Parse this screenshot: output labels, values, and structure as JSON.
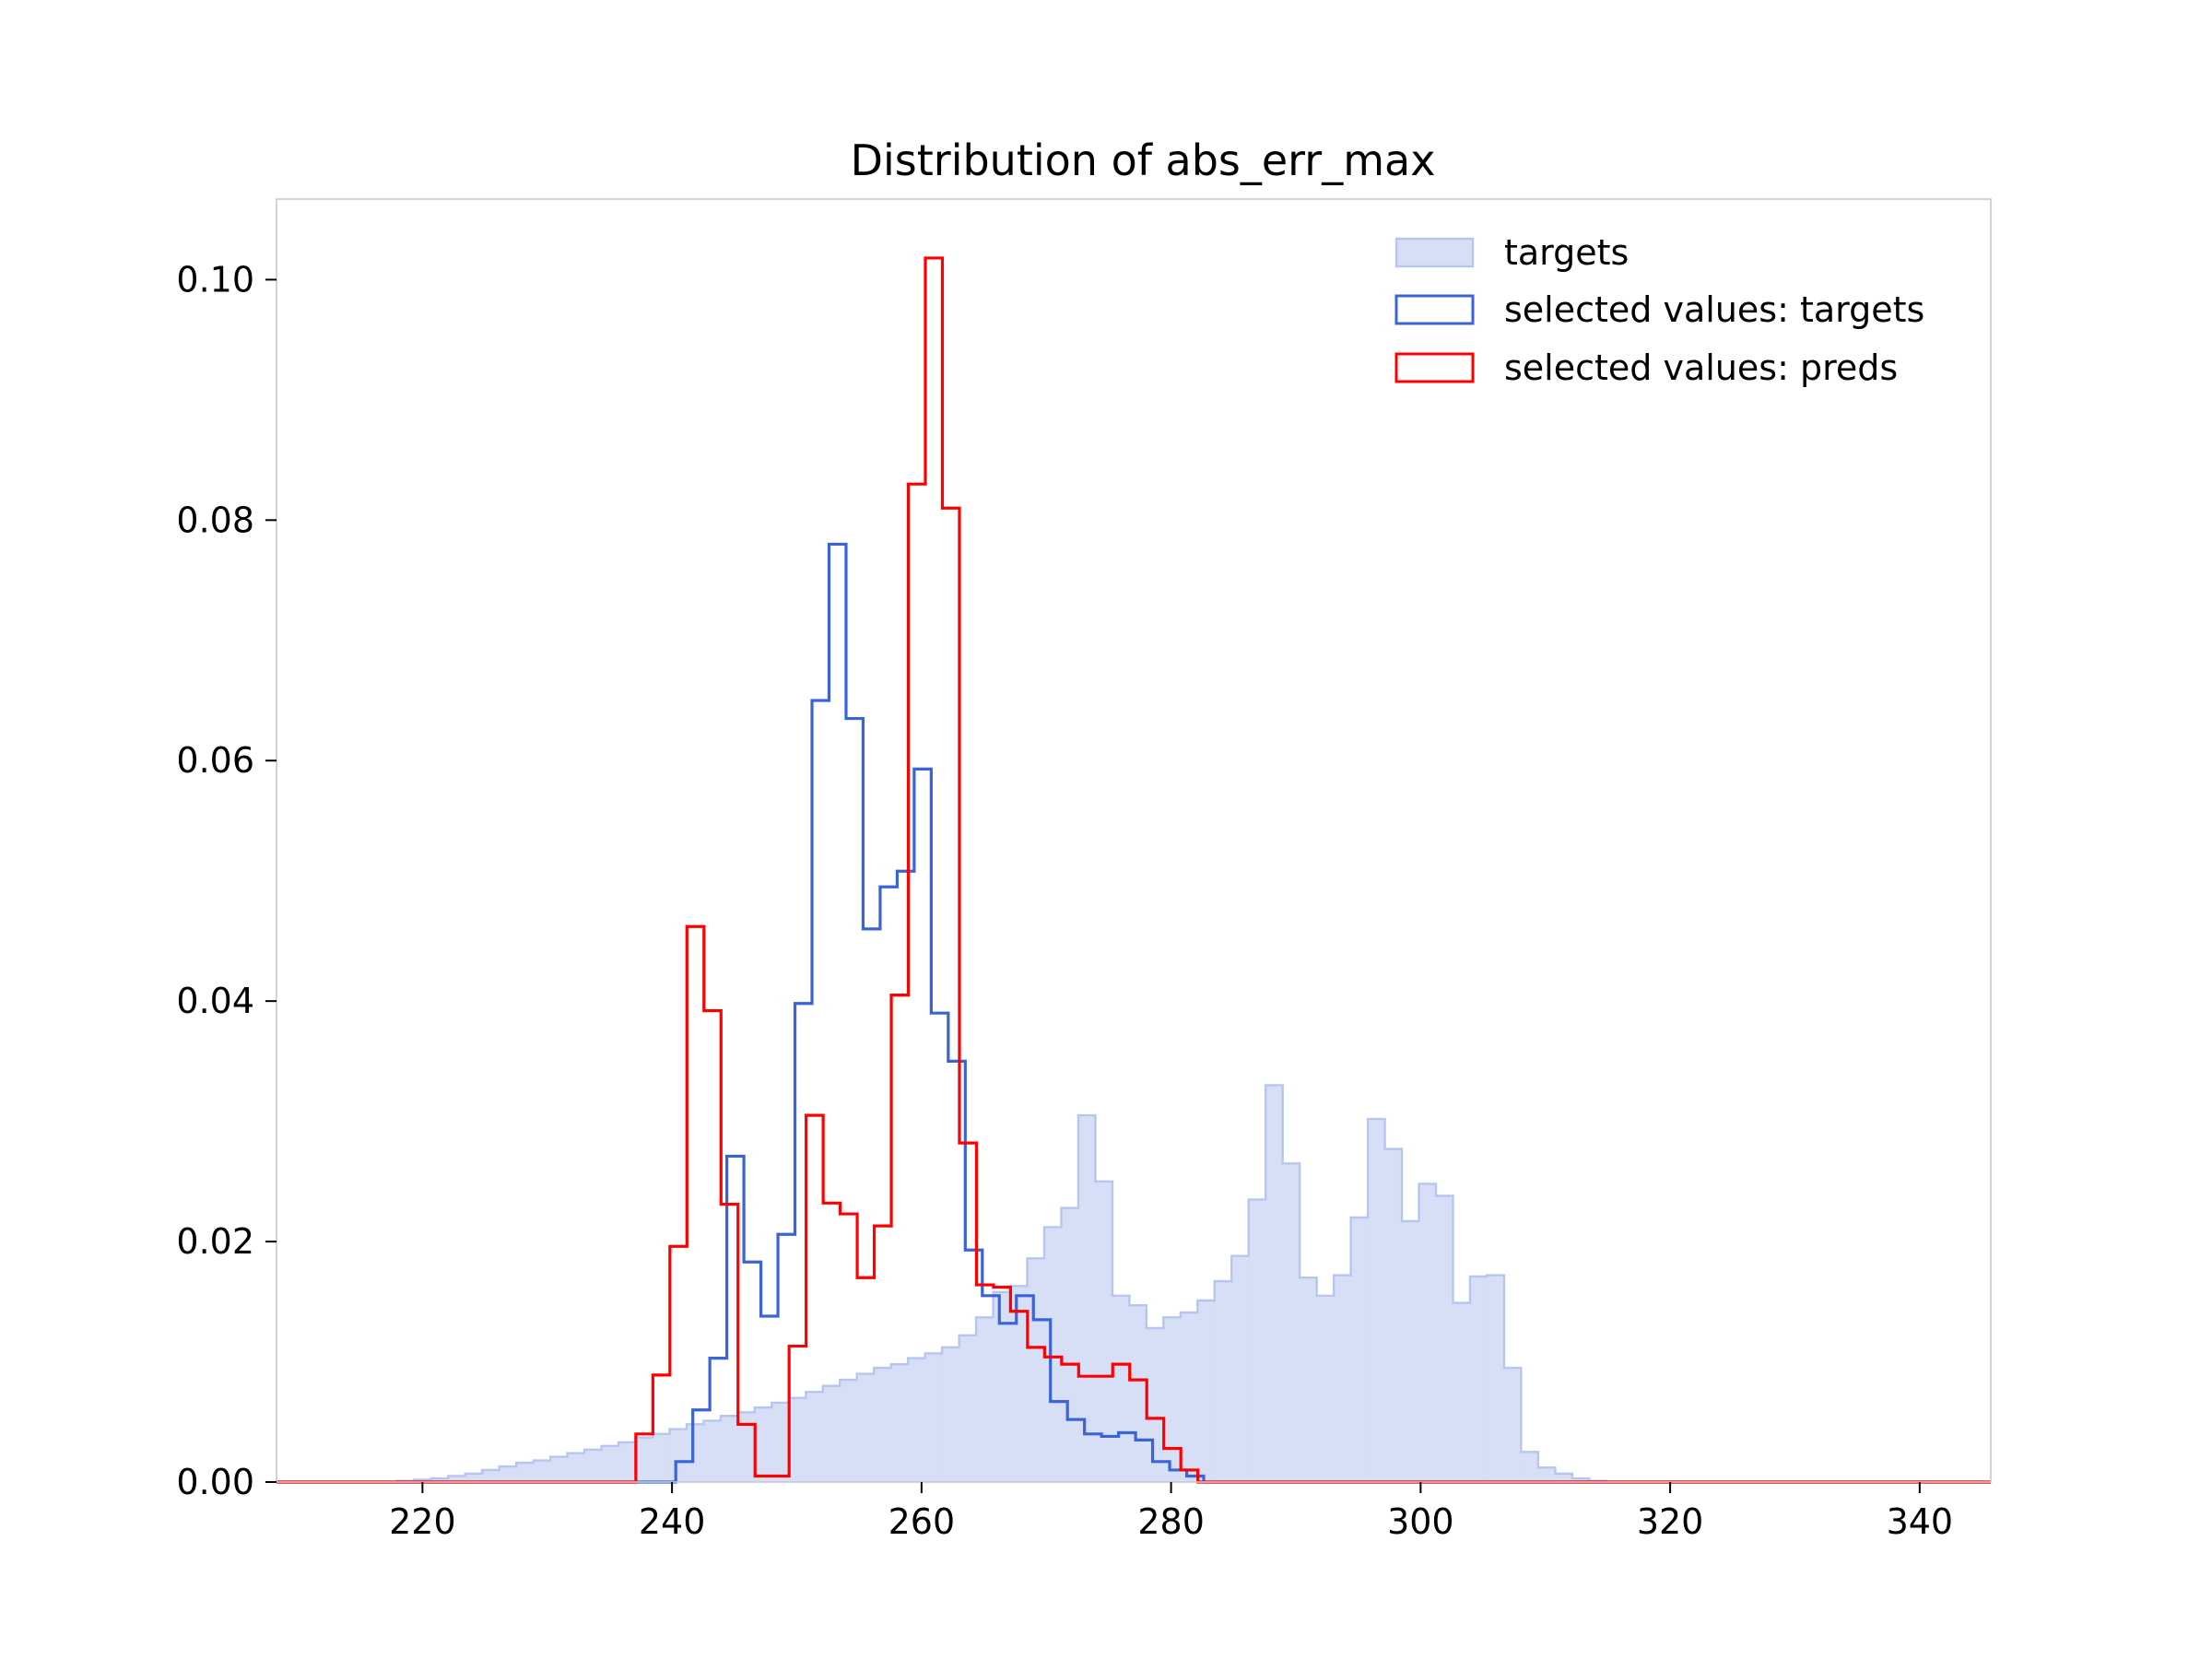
{
  "chart_data": {
    "type": "histogram",
    "title": "Distribution of abs_err_max",
    "xlabel": "",
    "ylabel": "",
    "xlim": [
      208.3,
      345.7
    ],
    "ylim": [
      0,
      0.1067
    ],
    "x_ticks": [
      220,
      240,
      260,
      280,
      300,
      320,
      340
    ],
    "x_tick_labels": [
      "220",
      "240",
      "260",
      "280",
      "300",
      "320",
      "340"
    ],
    "y_ticks": [
      0,
      0.02,
      0.04,
      0.06,
      0.08,
      0.1
    ],
    "y_tick_labels": [
      "0.00",
      "0.02",
      "0.04",
      "0.06",
      "0.08",
      "0.10"
    ],
    "grid": false,
    "legend_position": "top-right",
    "colors": {
      "targets_fill": "#d6dff6",
      "targets_edge": "#b7c6ee",
      "selected_targets": "#3b63d8",
      "selected_preds": "#ff0000",
      "frame": "#c8c8c8"
    },
    "series": [
      {
        "name": "targets",
        "style": "filled-step",
        "bin_start": 216.6,
        "bin_width": 1.365,
        "values": [
          0,
          0.0001,
          0.0002,
          0.0003,
          0.0005,
          0.0007,
          0.001,
          0.0013,
          0.0016,
          0.0018,
          0.0021,
          0.0024,
          0.0027,
          0.003,
          0.0033,
          0.0037,
          0.004,
          0.0044,
          0.0048,
          0.0051,
          0.0055,
          0.0058,
          0.0062,
          0.0066,
          0.007,
          0.0075,
          0.008,
          0.0085,
          0.009,
          0.0095,
          0.0098,
          0.0103,
          0.0107,
          0.0112,
          0.0122,
          0.0137,
          0.0158,
          0.0163,
          0.0186,
          0.0212,
          0.0228,
          0.0305,
          0.025,
          0.0155,
          0.0147,
          0.0128,
          0.0137,
          0.0141,
          0.0151,
          0.0167,
          0.0188,
          0.0235,
          0.033,
          0.0265,
          0.017,
          0.0155,
          0.0172,
          0.022,
          0.0302,
          0.0277,
          0.0217,
          0.0248,
          0.0238,
          0.0149,
          0.0171,
          0.0172,
          0.0095,
          0.0025,
          0.0012,
          0.0007,
          0.0003,
          0.0001,
          0
        ]
      },
      {
        "name": "selected values: targets",
        "style": "step",
        "bin_start": 240.3,
        "bin_width": 1.365,
        "values": [
          0.0017,
          0.006,
          0.0103,
          0.0271,
          0.0183,
          0.0138,
          0.0206,
          0.0398,
          0.065,
          0.078,
          0.0635,
          0.046,
          0.0495,
          0.0508,
          0.0593,
          0.039,
          0.035,
          0.0193,
          0.0155,
          0.0132,
          0.0155,
          0.0135,
          0.0067,
          0.0052,
          0.004,
          0.0038,
          0.0041,
          0.0035,
          0.0017,
          0.001,
          0.0005,
          0
        ]
      },
      {
        "name": "selected values: preds",
        "style": "step",
        "bin_start": 237.1,
        "bin_width": 1.365,
        "values": [
          0.004,
          0.0089,
          0.0196,
          0.0462,
          0.0392,
          0.0231,
          0.0048,
          0.0005,
          0.0005,
          0.0113,
          0.0305,
          0.0232,
          0.0223,
          0.017,
          0.0213,
          0.0405,
          0.083,
          0.1018,
          0.081,
          0.0282,
          0.0164,
          0.0162,
          0.0142,
          0.0112,
          0.0104,
          0.0098,
          0.0088,
          0.0088,
          0.0098,
          0.0085,
          0.0053,
          0.0028,
          0.001,
          0
        ]
      }
    ]
  }
}
